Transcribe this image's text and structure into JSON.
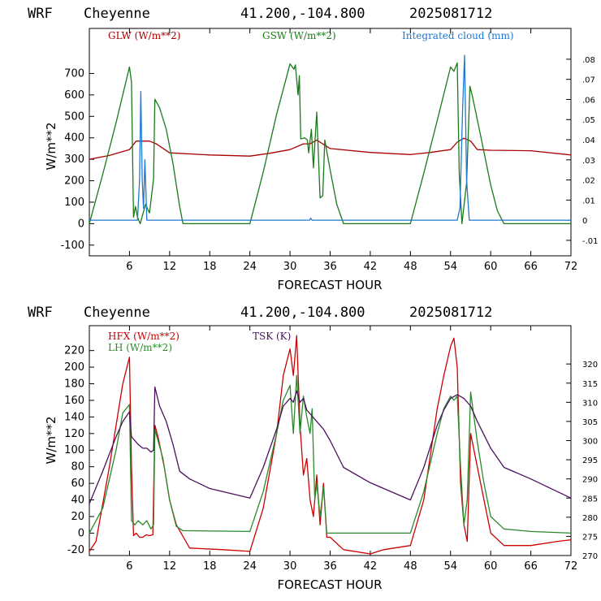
{
  "chart_data": [
    {
      "type": "line",
      "header": {
        "model": "WRF",
        "location": "Cheyenne",
        "coords": "41.200,-104.800",
        "run": "2025081712"
      },
      "xlabel": "FORECAST HOUR",
      "ylabel": "W/m**2",
      "xlim": [
        0,
        72
      ],
      "ylim": [
        -150,
        910
      ],
      "y2lim": [
        -0.0177,
        0.0953
      ],
      "xticks": [
        6,
        12,
        18,
        24,
        30,
        36,
        42,
        48,
        54,
        60,
        66,
        72
      ],
      "yticks": [
        -100,
        0,
        100,
        200,
        300,
        400,
        500,
        600,
        700
      ],
      "y2ticks": [
        -0.01,
        0,
        0.01,
        0.02,
        0.03,
        0.04,
        0.05,
        0.06,
        0.07,
        0.08
      ],
      "y2ticklabels": [
        "-.01",
        "0",
        ".01",
        ".02",
        ".03",
        ".04",
        ".05",
        ".06",
        ".07",
        ".08"
      ],
      "series": [
        {
          "name": "GLW (W/m**2)",
          "color": "#aa0000",
          "axis": "left",
          "points": [
            [
              0,
              300
            ],
            [
              3,
              318
            ],
            [
              6,
              345
            ],
            [
              7,
              385
            ],
            [
              9,
              385
            ],
            [
              10,
              372
            ],
            [
              12,
              330
            ],
            [
              18,
              320
            ],
            [
              24,
              315
            ],
            [
              27,
              328
            ],
            [
              30,
              345
            ],
            [
              32,
              372
            ],
            [
              33,
              372
            ],
            [
              34,
              390
            ],
            [
              36,
              350
            ],
            [
              42,
              332
            ],
            [
              48,
              322
            ],
            [
              51,
              332
            ],
            [
              54,
              345
            ],
            [
              55,
              380
            ],
            [
              56,
              398
            ],
            [
              57,
              385
            ],
            [
              58,
              345
            ],
            [
              60,
              342
            ],
            [
              66,
              340
            ],
            [
              72,
              320
            ]
          ]
        },
        {
          "name": "GSW (W/m**2)",
          "color": "#1a7a1a",
          "axis": "left",
          "points": [
            [
              0,
              0
            ],
            [
              2,
              230
            ],
            [
              4,
              470
            ],
            [
              6,
              730
            ],
            [
              6.3,
              660
            ],
            [
              6.6,
              30
            ],
            [
              6.9,
              80
            ],
            [
              7.2,
              30
            ],
            [
              7.6,
              0
            ],
            [
              8.4,
              90
            ],
            [
              9.0,
              50
            ],
            [
              9.6,
              210
            ],
            [
              9.8,
              580
            ],
            [
              10.5,
              540
            ],
            [
              11.5,
              440
            ],
            [
              12.5,
              280
            ],
            [
              13.5,
              80
            ],
            [
              14,
              0
            ],
            [
              24,
              0
            ],
            [
              26,
              240
            ],
            [
              28,
              510
            ],
            [
              30,
              745
            ],
            [
              30.6,
              720
            ],
            [
              30.8,
              740
            ],
            [
              31.2,
              600
            ],
            [
              31.4,
              690
            ],
            [
              31.6,
              395
            ],
            [
              32.2,
              400
            ],
            [
              32.6,
              390
            ],
            [
              32.8,
              330
            ],
            [
              33.2,
              440
            ],
            [
              33.5,
              260
            ],
            [
              34,
              520
            ],
            [
              34.5,
              120
            ],
            [
              34.9,
              130
            ],
            [
              35.2,
              390
            ],
            [
              36,
              250
            ],
            [
              37,
              90
            ],
            [
              38,
              0
            ],
            [
              48,
              0
            ],
            [
              50,
              235
            ],
            [
              52,
              480
            ],
            [
              54,
              730
            ],
            [
              54.5,
              710
            ],
            [
              55,
              750
            ],
            [
              55.3,
              230
            ],
            [
              55.7,
              0
            ],
            [
              56.4,
              190
            ],
            [
              56.9,
              640
            ],
            [
              57.3,
              590
            ],
            [
              58.5,
              410
            ],
            [
              60,
              180
            ],
            [
              61,
              60
            ],
            [
              62,
              0
            ],
            [
              72,
              0
            ]
          ]
        },
        {
          "name": "Integrated cloud (mm)",
          "color": "#1f78d0",
          "axis": "right",
          "points": [
            [
              0,
              0
            ],
            [
              7.2,
              0
            ],
            [
              7.5,
              0.02
            ],
            [
              7.7,
              0.064
            ],
            [
              7.9,
              0.02
            ],
            [
              8.1,
              0.006
            ],
            [
              8.3,
              0.03
            ],
            [
              8.6,
              0
            ],
            [
              32.9,
              0
            ],
            [
              33.1,
              0.001
            ],
            [
              33.3,
              0
            ],
            [
              55.0,
              0
            ],
            [
              55.4,
              0.006
            ],
            [
              55.8,
              0.055
            ],
            [
              56.1,
              0.082
            ],
            [
              56.4,
              0.02
            ],
            [
              56.8,
              0
            ],
            [
              72,
              0
            ]
          ]
        }
      ]
    },
    {
      "type": "line",
      "header": {
        "model": "WRF",
        "location": "Cheyenne",
        "coords": "41.200,-104.800",
        "run": "2025081712"
      },
      "xlabel": "FORECAST HOUR",
      "ylabel": "W/m**2",
      "xlim": [
        0,
        72
      ],
      "ylim": [
        -27,
        250
      ],
      "y2lim": [
        270,
        330
      ],
      "xticks": [
        6,
        12,
        18,
        24,
        30,
        36,
        42,
        48,
        54,
        60,
        66,
        72
      ],
      "yticks": [
        -20,
        0,
        20,
        40,
        60,
        80,
        100,
        120,
        140,
        160,
        180,
        200,
        220
      ],
      "y2ticks": [
        270,
        275,
        280,
        285,
        290,
        295,
        300,
        305,
        310,
        315,
        320
      ],
      "series": [
        {
          "name": "HFX (W/m**2)",
          "color": "#cc0000",
          "axis": "left",
          "points": [
            [
              0,
              -22
            ],
            [
              1,
              -10
            ],
            [
              3,
              80
            ],
            [
              5,
              180
            ],
            [
              6,
              212
            ],
            [
              6.3,
              80
            ],
            [
              6.6,
              -3
            ],
            [
              7,
              0
            ],
            [
              7.5,
              -5
            ],
            [
              8,
              -5
            ],
            [
              8.5,
              -2
            ],
            [
              9,
              -3
            ],
            [
              9.5,
              -2
            ],
            [
              9.8,
              130
            ],
            [
              10.3,
              115
            ],
            [
              11.2,
              80
            ],
            [
              12,
              40
            ],
            [
              13,
              10
            ],
            [
              15,
              -18
            ],
            [
              20,
              -20
            ],
            [
              24,
              -22
            ],
            [
              26,
              30
            ],
            [
              28,
              120
            ],
            [
              29,
              190
            ],
            [
              30,
              222
            ],
            [
              30.5,
              190
            ],
            [
              31,
              238
            ],
            [
              31.5,
              130
            ],
            [
              32,
              70
            ],
            [
              32.5,
              90
            ],
            [
              33,
              40
            ],
            [
              33.5,
              20
            ],
            [
              34,
              70
            ],
            [
              34.5,
              10
            ],
            [
              35,
              60
            ],
            [
              35.5,
              -5
            ],
            [
              36,
              -5
            ],
            [
              38,
              -20
            ],
            [
              42,
              -25
            ],
            [
              44,
              -20
            ],
            [
              48,
              -15
            ],
            [
              50,
              40
            ],
            [
              52,
              150
            ],
            [
              53,
              190
            ],
            [
              54,
              225
            ],
            [
              54.5,
              235
            ],
            [
              55,
              200
            ],
            [
              55.5,
              60
            ],
            [
              56,
              10
            ],
            [
              56.5,
              -10
            ],
            [
              57,
              120
            ],
            [
              58,
              80
            ],
            [
              59,
              40
            ],
            [
              60,
              0
            ],
            [
              62,
              -15
            ],
            [
              66,
              -15
            ],
            [
              70,
              -10
            ],
            [
              72,
              -8
            ]
          ]
        },
        {
          "name": "LH (W/m**2)",
          "color": "#2a8a2a",
          "axis": "left",
          "points": [
            [
              0,
              0
            ],
            [
              2,
              30
            ],
            [
              4,
              100
            ],
            [
              5,
              145
            ],
            [
              6,
              155
            ],
            [
              6.3,
              15
            ],
            [
              6.8,
              10
            ],
            [
              7.3,
              15
            ],
            [
              8,
              10
            ],
            [
              8.6,
              15
            ],
            [
              9.2,
              5
            ],
            [
              9.6,
              10
            ],
            [
              9.8,
              125
            ],
            [
              11,
              90
            ],
            [
              12,
              40
            ],
            [
              13,
              8
            ],
            [
              14,
              3
            ],
            [
              24,
              2
            ],
            [
              26,
              50
            ],
            [
              28,
              120
            ],
            [
              29,
              160
            ],
            [
              30,
              178
            ],
            [
              30.5,
              120
            ],
            [
              31,
              190
            ],
            [
              31.5,
              120
            ],
            [
              32,
              165
            ],
            [
              32.5,
              140
            ],
            [
              33,
              120
            ],
            [
              33.3,
              150
            ],
            [
              33.7,
              40
            ],
            [
              34,
              60
            ],
            [
              34.5,
              20
            ],
            [
              35,
              55
            ],
            [
              35.5,
              0
            ],
            [
              37,
              0
            ],
            [
              48,
              0
            ],
            [
              50,
              50
            ],
            [
              52,
              120
            ],
            [
              53,
              150
            ],
            [
              54,
              165
            ],
            [
              54.5,
              160
            ],
            [
              55,
              165
            ],
            [
              55.5,
              80
            ],
            [
              56,
              10
            ],
            [
              56.5,
              40
            ],
            [
              57,
              170
            ],
            [
              58,
              110
            ],
            [
              59,
              60
            ],
            [
              60,
              20
            ],
            [
              62,
              5
            ],
            [
              66,
              2
            ],
            [
              72,
              0
            ]
          ]
        },
        {
          "name": "TSK (K)",
          "color": "#4b1060",
          "axis": "right",
          "points": [
            [
              0,
              283.5
            ],
            [
              2,
              292
            ],
            [
              4,
              301
            ],
            [
              5,
              305
            ],
            [
              6,
              307.5
            ],
            [
              6.3,
              301
            ],
            [
              6.8,
              300
            ],
            [
              7.3,
              299
            ],
            [
              8,
              298
            ],
            [
              8.6,
              298
            ],
            [
              9.2,
              297
            ],
            [
              9.6,
              297.5
            ],
            [
              9.8,
              314
            ],
            [
              10.5,
              309
            ],
            [
              11.5,
              305
            ],
            [
              12.5,
              299
            ],
            [
              13.5,
              292
            ],
            [
              15,
              290
            ],
            [
              18,
              287.5
            ],
            [
              24,
              285
            ],
            [
              26,
              293
            ],
            [
              28,
              303
            ],
            [
              29,
              309
            ],
            [
              30,
              311
            ],
            [
              30.5,
              310
            ],
            [
              31,
              313
            ],
            [
              31.5,
              310
            ],
            [
              32,
              311
            ],
            [
              32.5,
              308
            ],
            [
              33,
              307
            ],
            [
              34,
              305
            ],
            [
              35,
              303
            ],
            [
              36,
              300
            ],
            [
              38,
              293
            ],
            [
              42,
              289
            ],
            [
              48,
              284.5
            ],
            [
              50,
              293
            ],
            [
              52,
              304
            ],
            [
              53,
              308
            ],
            [
              54,
              311
            ],
            [
              55,
              312
            ],
            [
              56,
              311
            ],
            [
              57,
              309
            ],
            [
              58,
              305
            ],
            [
              60,
              298
            ],
            [
              62,
              293
            ],
            [
              66,
              290
            ],
            [
              72,
              285
            ]
          ]
        }
      ]
    }
  ]
}
